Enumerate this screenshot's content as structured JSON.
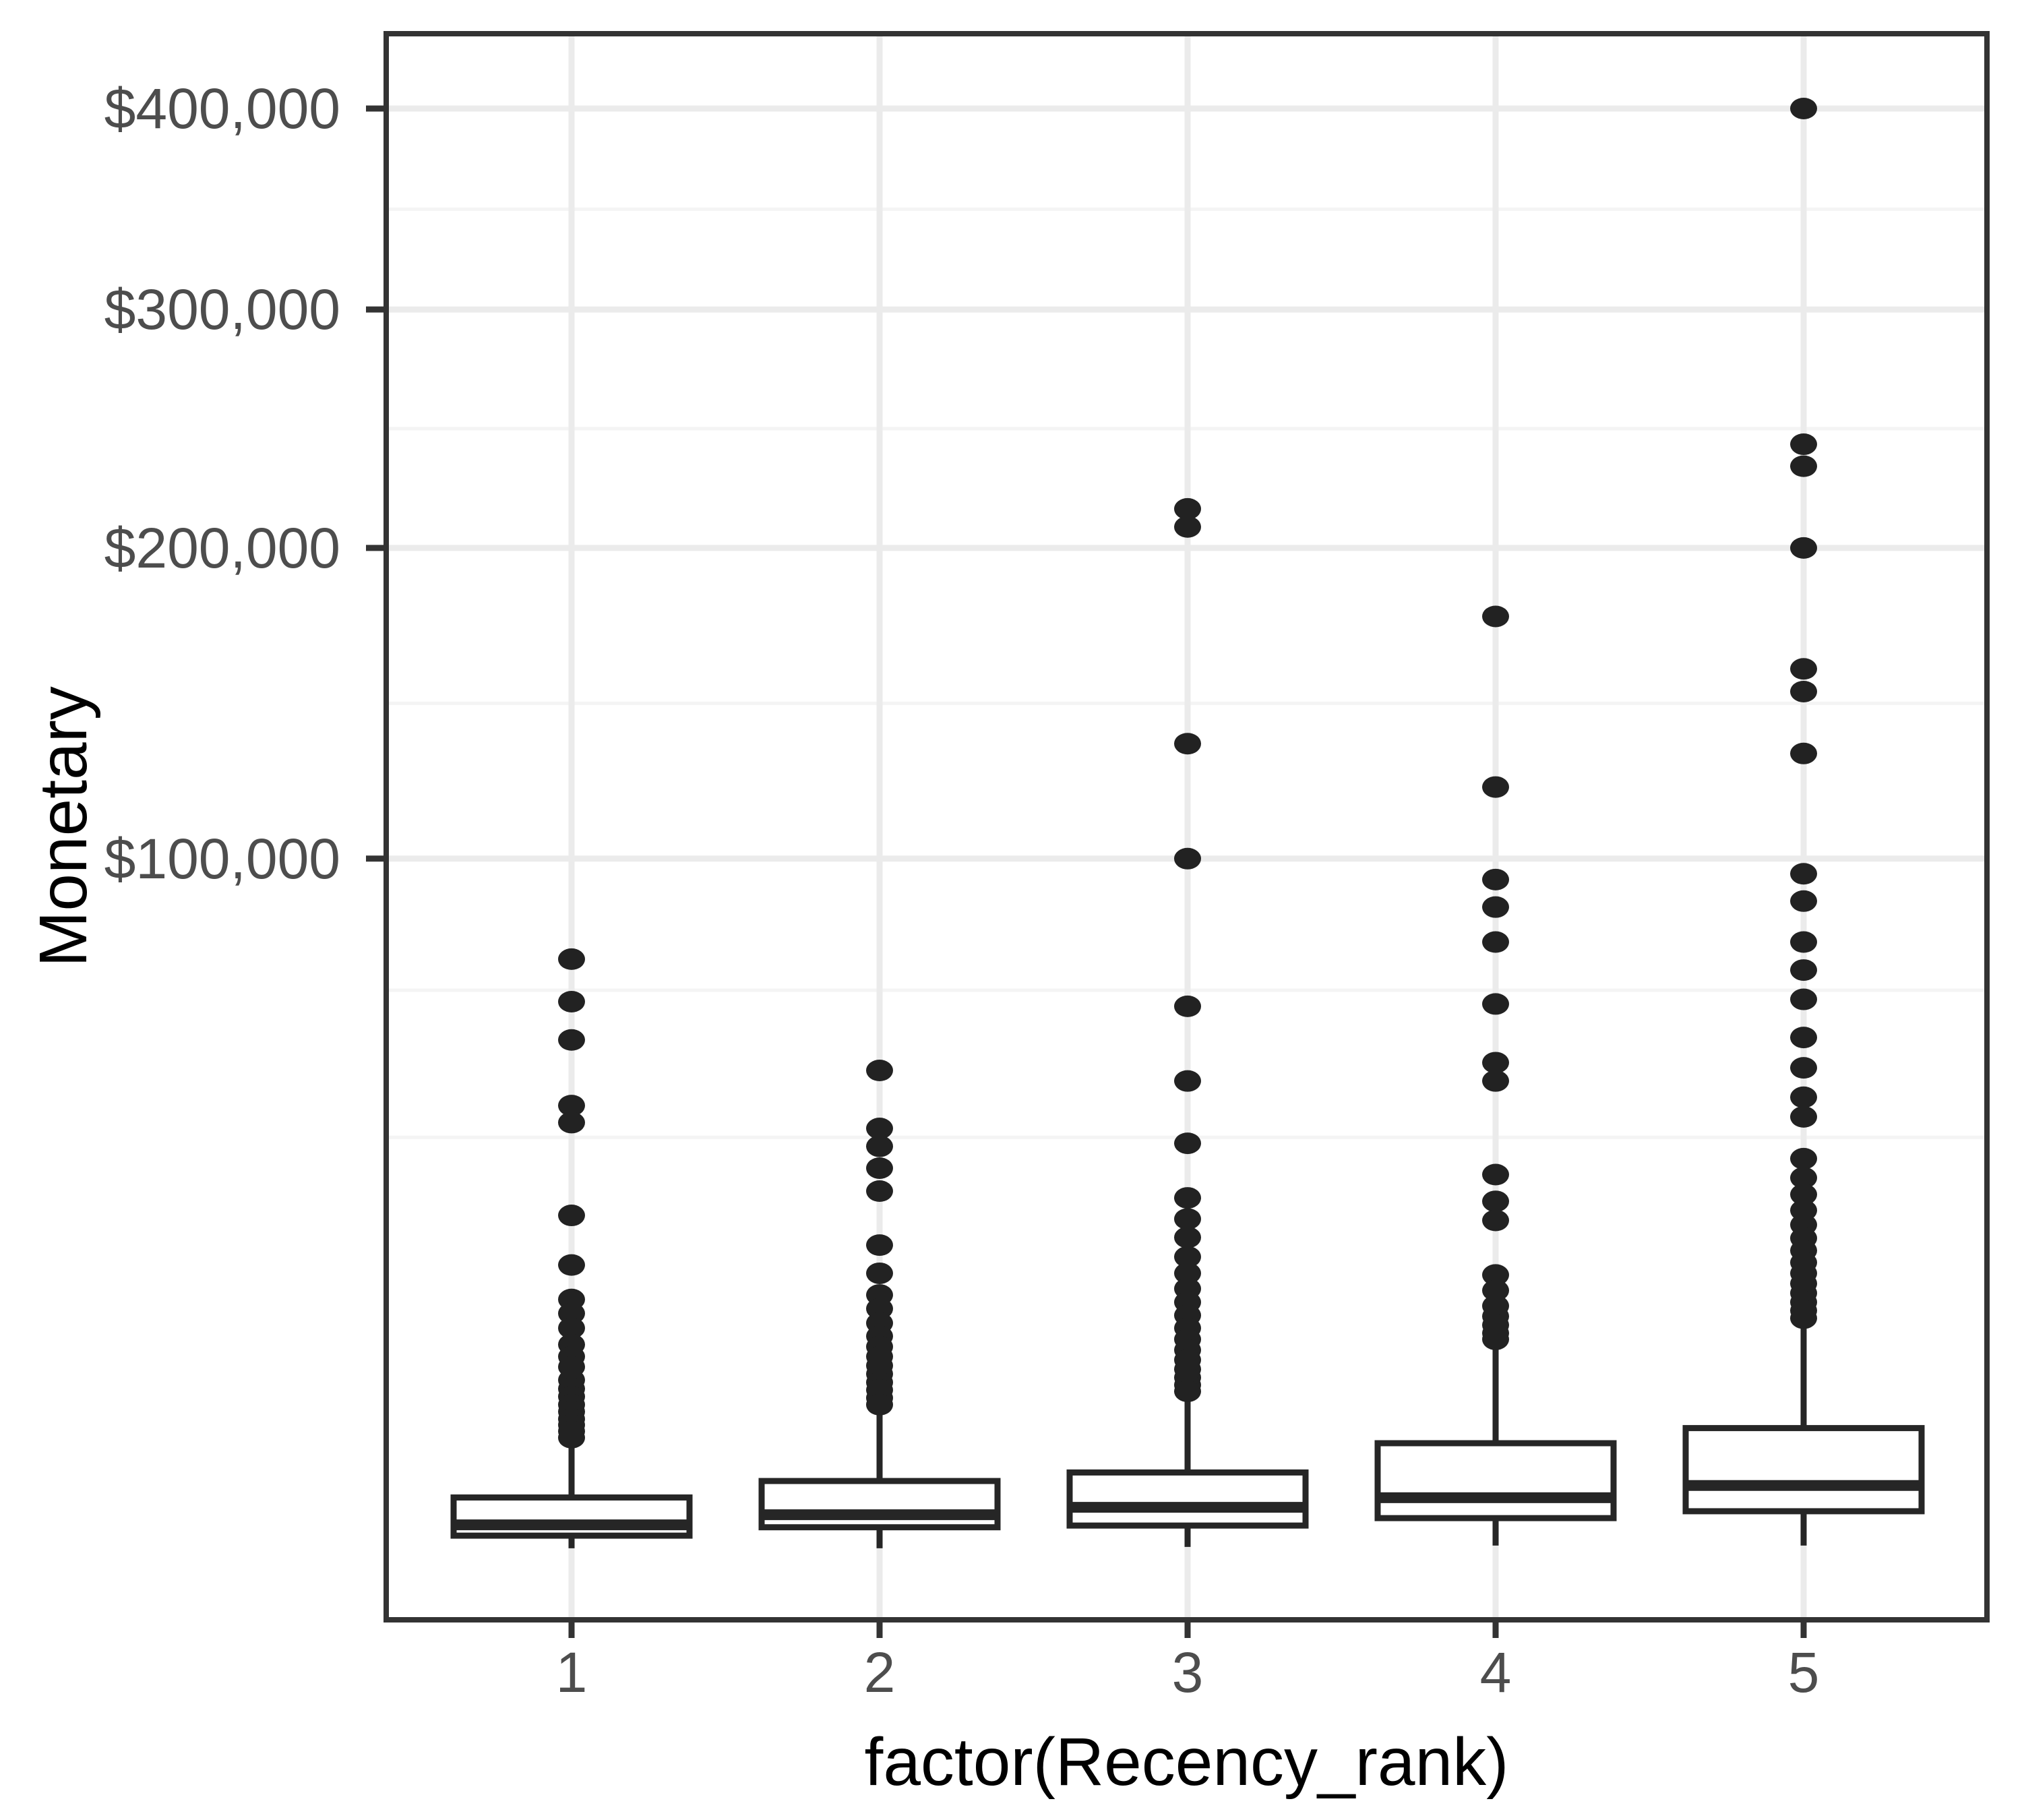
{
  "chart_data": {
    "type": "boxplot",
    "title": "",
    "xlabel": "factor(Recency_rank)",
    "ylabel": "Monetary",
    "categories": [
      "1",
      "2",
      "3",
      "4",
      "5"
    ],
    "legend": "none",
    "y_axis": {
      "transform": "sqrt",
      "tick_values": [
        100000,
        200000,
        300000,
        400000
      ],
      "tick_labels": [
        "$100,000",
        "$200,000",
        "$300,000",
        "$400,000"
      ],
      "minor_tick_values": [
        39500,
        68000,
        145700,
        247500,
        348100
      ],
      "range": [
        0,
        441000
      ],
      "grid": true
    },
    "series": [
      {
        "category": "1",
        "lower_whisker": 650,
        "q1": 950,
        "median": 1250,
        "q3": 2200,
        "upper_whisker": 4800,
        "outliers": [
          75000,
          65500,
          57500,
          45000,
          42000,
          27500,
          21000,
          17000,
          15500,
          14000,
          12400,
          11300,
          10400,
          9300,
          8600,
          8000,
          7400,
          6900,
          6400,
          6000,
          5600,
          5200
        ]
      },
      {
        "category": "2",
        "lower_whisker": 650,
        "q1": 1180,
        "median": 1570,
        "q3": 2900,
        "upper_whisker": 6800,
        "outliers": [
          51500,
          41000,
          38000,
          34500,
          31000,
          23500,
          20000,
          17500,
          16000,
          14500,
          13200,
          12200,
          11300,
          10500,
          9800,
          9100,
          8500,
          7900,
          7400
        ]
      },
      {
        "category": "3",
        "lower_whisker": 680,
        "q1": 1230,
        "median": 1830,
        "q3": 3300,
        "upper_whisker": 7800,
        "outliers": [
          215000,
          208000,
          133000,
          100000,
          64500,
          49500,
          38500,
          30000,
          27000,
          24500,
          22000,
          20000,
          18200,
          16700,
          15300,
          14000,
          12900,
          11900,
          11000,
          10200,
          9500,
          8900,
          8400
        ]
      },
      {
        "category": "4",
        "lower_whisker": 710,
        "q1": 1460,
        "median": 2190,
        "q3": 4870,
        "upper_whisker": 12400,
        "outliers": [
          175000,
          120000,
          94500,
          87500,
          79000,
          65000,
          53000,
          49500,
          33500,
          29500,
          26800,
          19800,
          18000,
          16300,
          15200,
          14300,
          13500,
          12900
        ]
      },
      {
        "category": "5",
        "lower_whisker": 710,
        "q1": 1690,
        "median": 2700,
        "q3": 5800,
        "upper_whisker": 14400,
        "outliers": [
          400000,
          241000,
          232000,
          200000,
          157000,
          149500,
          130000,
          96000,
          89000,
          79000,
          72500,
          66000,
          58000,
          52000,
          46500,
          43000,
          36000,
          33000,
          30500,
          28200,
          26200,
          24400,
          22800,
          21300,
          20000,
          18800,
          17700,
          16700,
          15800,
          15000
        ]
      }
    ],
    "style": {
      "panel_background": "#ffffff",
      "panel_border": "#333333",
      "grid_major": "#ebebeb",
      "grid_minor": "#f4f4f4",
      "box_stroke": "#262626",
      "box_fill": "#ffffff",
      "outlier_fill": "#222222",
      "tick_color": "#333333",
      "tick_text": "#4d4d4d",
      "title_text": "#000000"
    }
  }
}
